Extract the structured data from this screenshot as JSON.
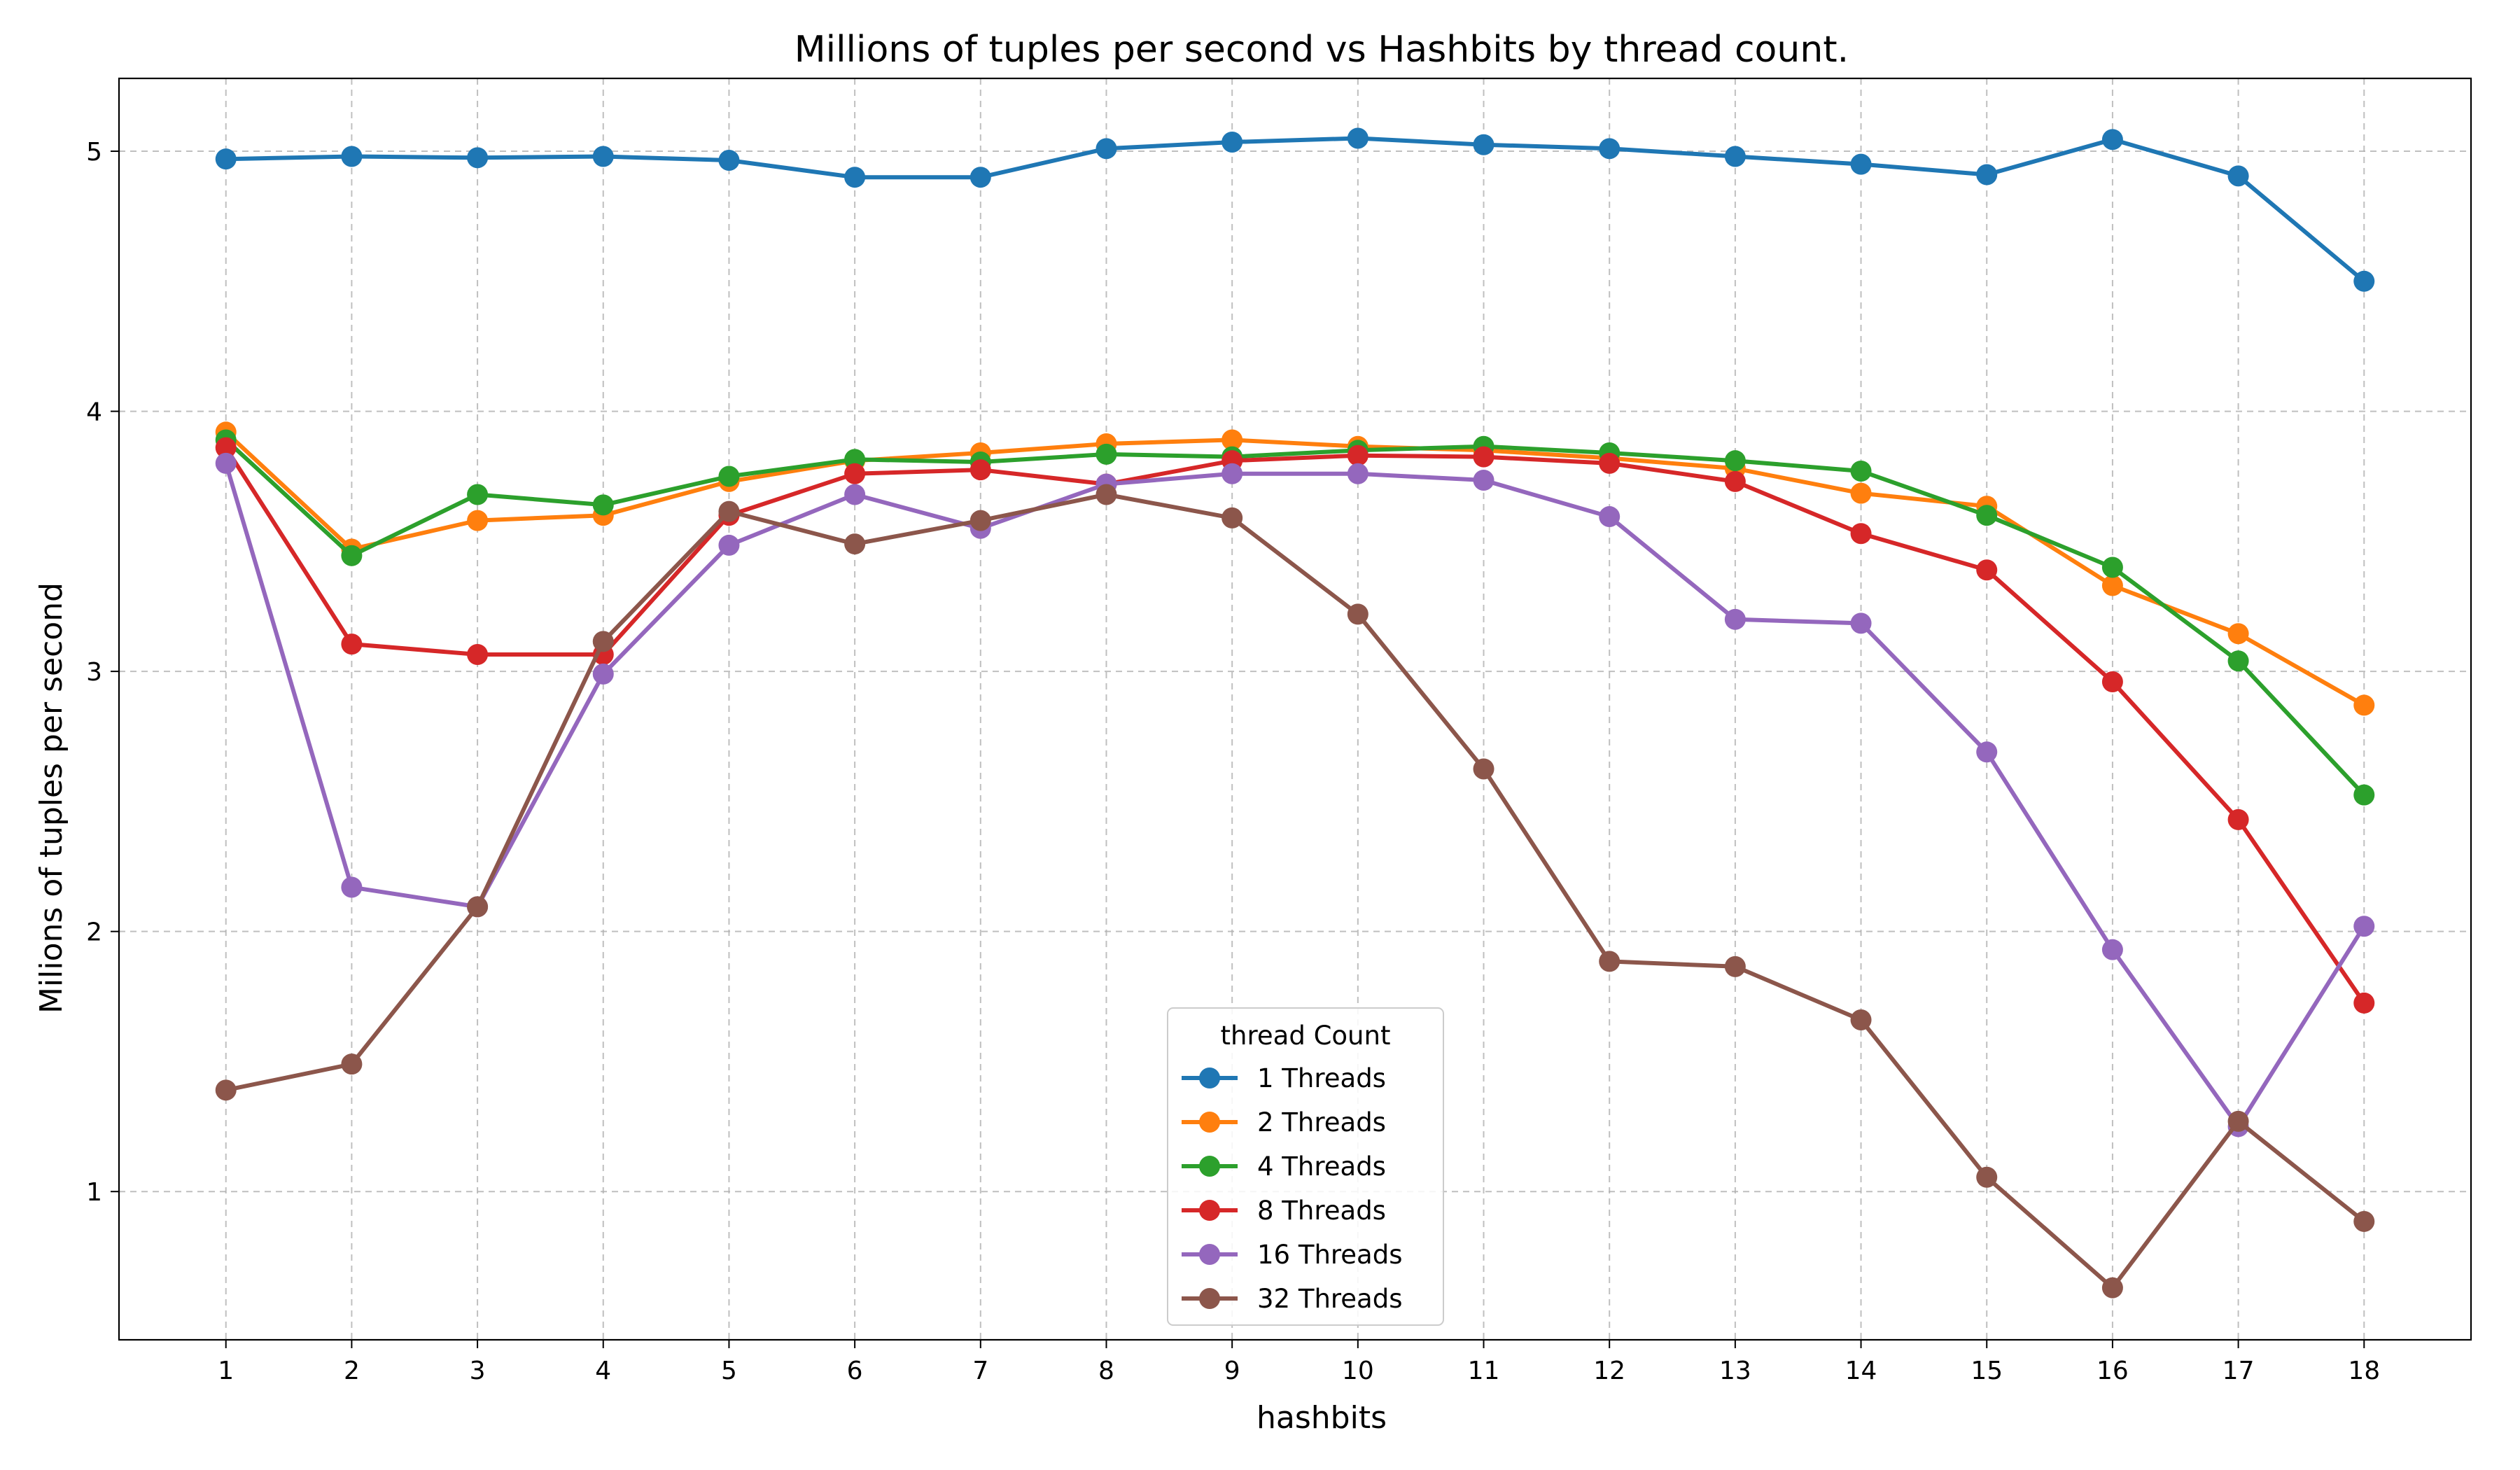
{
  "chart_data": {
    "type": "line",
    "title": "Millions of tuples per second vs Hashbits by thread count.",
    "xlabel": "hashbits",
    "ylabel": "Milions of tuples per second",
    "x": [
      1,
      2,
      3,
      4,
      5,
      6,
      7,
      8,
      9,
      10,
      11,
      12,
      13,
      14,
      15,
      16,
      17,
      18
    ],
    "xlim": [
      0.15,
      18.85
    ],
    "ylim": [
      0.43,
      5.28
    ],
    "yticks": [
      1,
      2,
      3,
      4,
      5
    ],
    "grid": true,
    "legend": {
      "title": "thread Count",
      "placement": "lower-center"
    },
    "series": [
      {
        "name": "1 Threads",
        "color": "#1f77b4",
        "values": [
          4.97,
          4.98,
          4.975,
          4.98,
          4.965,
          4.9,
          4.9,
          5.01,
          5.035,
          5.05,
          5.025,
          5.01,
          4.98,
          4.95,
          4.91,
          5.045,
          4.905,
          4.5
        ]
      },
      {
        "name": "2 Threads",
        "color": "#ff7f0e",
        "values": [
          3.92,
          3.47,
          3.58,
          3.6,
          3.73,
          3.81,
          3.84,
          3.875,
          3.89,
          3.865,
          3.85,
          3.82,
          3.78,
          3.685,
          3.635,
          3.33,
          3.145,
          2.87
        ]
      },
      {
        "name": "4 Threads",
        "color": "#2ca02c",
        "values": [
          3.89,
          3.445,
          3.68,
          3.64,
          3.75,
          3.815,
          3.805,
          3.835,
          3.825,
          3.85,
          3.865,
          3.84,
          3.81,
          3.77,
          3.6,
          3.4,
          3.04,
          2.525
        ]
      },
      {
        "name": "8 Threads",
        "color": "#d62728",
        "values": [
          3.86,
          3.105,
          3.065,
          3.065,
          3.6,
          3.76,
          3.775,
          3.72,
          3.81,
          3.83,
          3.825,
          3.8,
          3.73,
          3.53,
          3.39,
          2.96,
          2.43,
          1.725
        ]
      },
      {
        "name": "16 Threads",
        "color": "#9467bd",
        "values": [
          3.8,
          2.17,
          2.095,
          2.99,
          3.485,
          3.68,
          3.55,
          3.72,
          3.76,
          3.76,
          3.735,
          3.595,
          3.2,
          3.185,
          2.69,
          1.93,
          1.25,
          2.02
        ]
      },
      {
        "name": "32 Threads",
        "color": "#8c564b",
        "values": [
          1.39,
          1.49,
          2.095,
          3.115,
          3.615,
          3.49,
          3.58,
          3.68,
          3.59,
          3.22,
          2.625,
          1.885,
          1.865,
          1.66,
          1.055,
          0.63,
          1.27,
          0.885
        ]
      }
    ]
  }
}
